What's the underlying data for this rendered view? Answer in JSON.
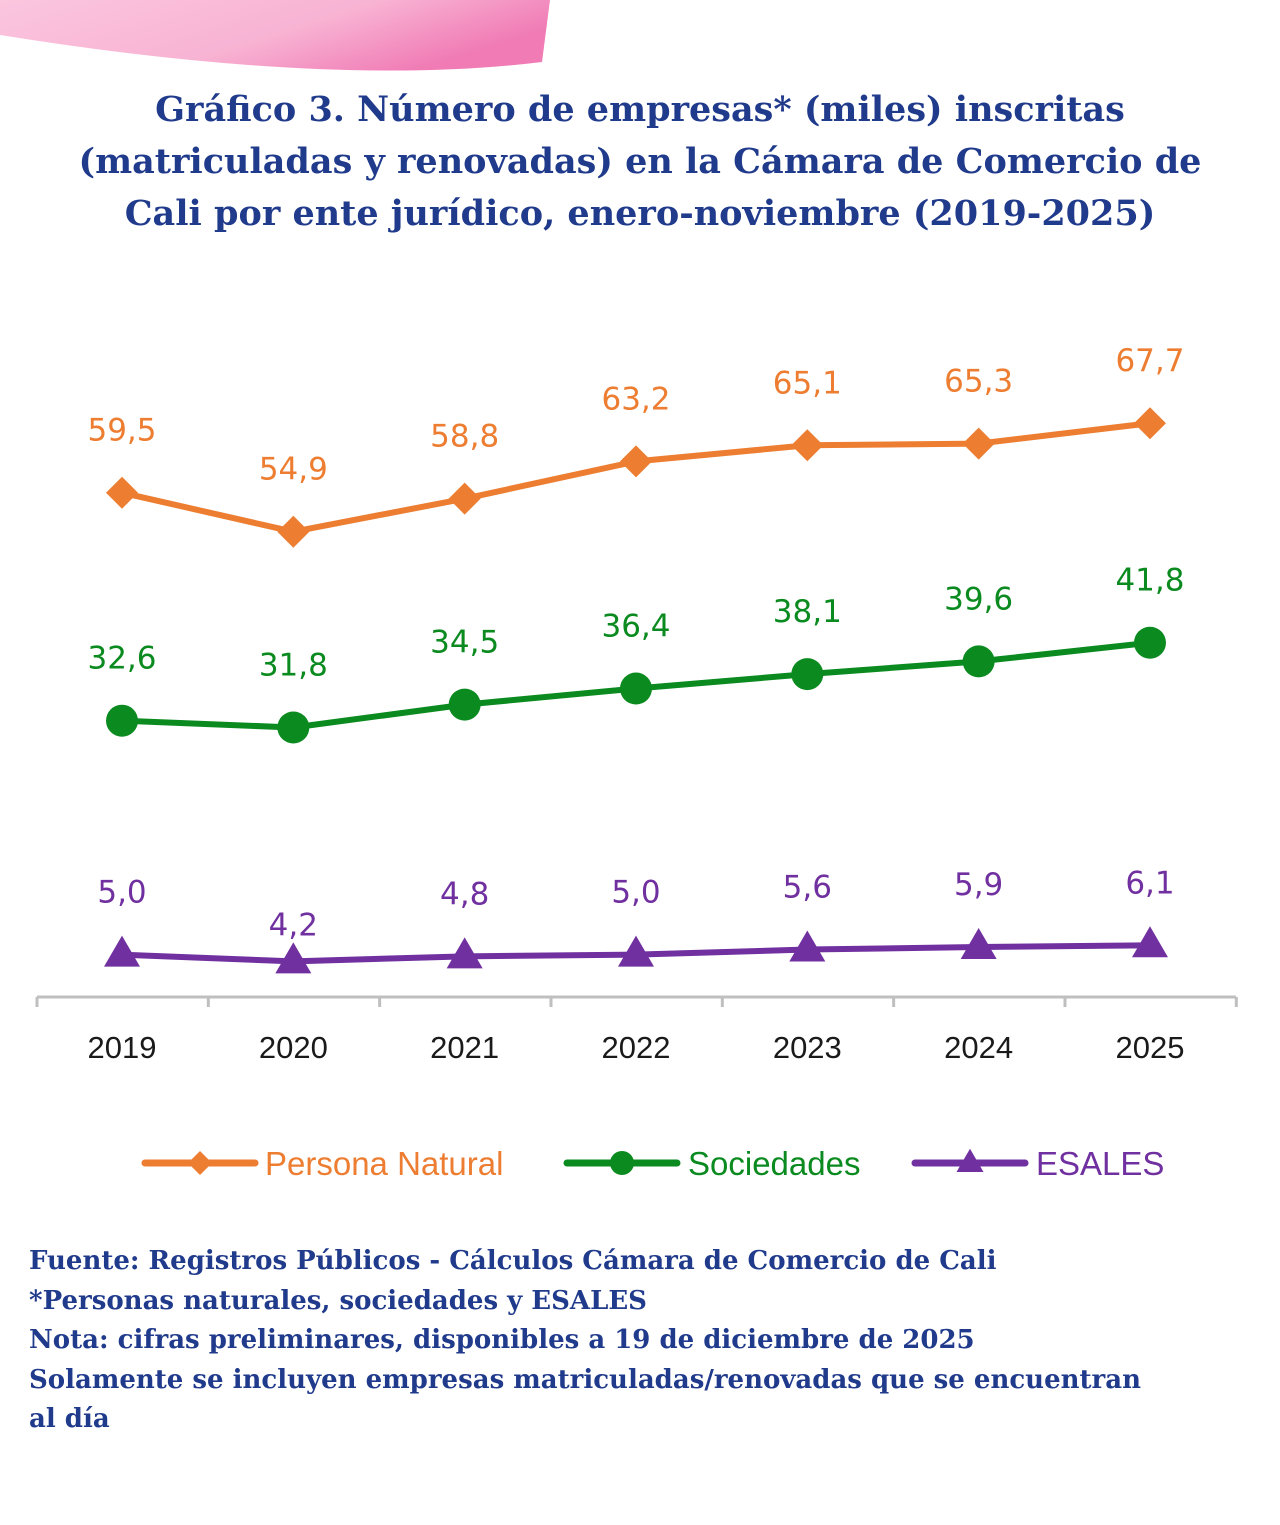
{
  "title_lines": [
    "Gráfico 3. Número de empresas* (miles) inscritas",
    "(matriculadas y renovadas) en la Cámara de Comercio de",
    "Cali por ente jurídico, enero-noviembre (2019-2025)"
  ],
  "chart_data": {
    "type": "line",
    "title": "Gráfico 3. Número de empresas* (miles) inscritas (matriculadas y renovadas) en la Cámara de Comercio de Cali por ente jurídico, enero-noviembre (2019-2025)",
    "categories": [
      "2019",
      "2020",
      "2021",
      "2022",
      "2023",
      "2024",
      "2025"
    ],
    "series": [
      {
        "name": "Persona Natural",
        "values": [
          59.5,
          54.9,
          58.8,
          63.2,
          65.1,
          65.3,
          67.7
        ],
        "labels": [
          "59,5",
          "54,9",
          "58,8",
          "63,2",
          "65,1",
          "65,3",
          "67,7"
        ],
        "color": "#ed7d31",
        "marker": "diamond"
      },
      {
        "name": "Sociedades",
        "values": [
          32.6,
          31.8,
          34.5,
          36.4,
          38.1,
          39.6,
          41.8
        ],
        "labels": [
          "32,6",
          "31,8",
          "34,5",
          "36,4",
          "38,1",
          "39,6",
          "41,8"
        ],
        "color": "#0a8a1f",
        "marker": "circle"
      },
      {
        "name": "ESALES",
        "values": [
          5.0,
          4.2,
          4.8,
          5.0,
          5.6,
          5.9,
          6.1
        ],
        "labels": [
          "5,0",
          "4,2",
          "4,8",
          "5,0",
          "5,6",
          "5,9",
          "6,1"
        ],
        "color": "#7030a0",
        "marker": "triangle"
      }
    ],
    "ylim": [
      0,
      80
    ],
    "y_axis_visible": false,
    "grid": false,
    "legend_position": "bottom"
  },
  "footer_lines": [
    "Fuente: Registros Públicos - Cálculos Cámara de Comercio de Cali",
    "*Personas naturales, sociedades y ESALES",
    "Nota: cifras preliminares, disponibles a 19 de diciembre de 2025",
    "Solamente se incluyen empresas matriculadas/renovadas que se encuentran",
    "al día"
  ]
}
